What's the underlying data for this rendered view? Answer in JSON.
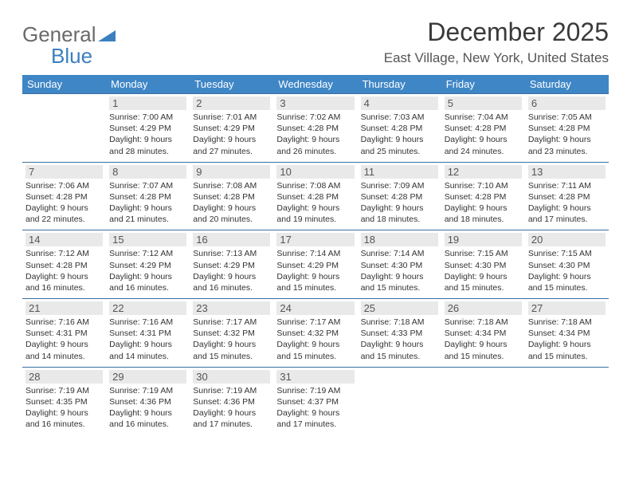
{
  "brand": {
    "part1": "General",
    "part2": "Blue"
  },
  "title": "December 2025",
  "location": "East Village, New York, United States",
  "colors": {
    "header_bg": "#3f86c6",
    "header_text": "#ffffff",
    "row_border": "#3a6fa0",
    "daynum_bg": "#e9e9e9",
    "daynum_text": "#555555",
    "body_text": "#333333",
    "brand_gray": "#6a6a6a",
    "brand_blue": "#3b7fbf"
  },
  "weekdays": [
    "Sunday",
    "Monday",
    "Tuesday",
    "Wednesday",
    "Thursday",
    "Friday",
    "Saturday"
  ],
  "weeks": [
    [
      null,
      {
        "n": "1",
        "sr": "Sunrise: 7:00 AM",
        "ss": "Sunset: 4:29 PM",
        "d1": "Daylight: 9 hours",
        "d2": "and 28 minutes."
      },
      {
        "n": "2",
        "sr": "Sunrise: 7:01 AM",
        "ss": "Sunset: 4:29 PM",
        "d1": "Daylight: 9 hours",
        "d2": "and 27 minutes."
      },
      {
        "n": "3",
        "sr": "Sunrise: 7:02 AM",
        "ss": "Sunset: 4:28 PM",
        "d1": "Daylight: 9 hours",
        "d2": "and 26 minutes."
      },
      {
        "n": "4",
        "sr": "Sunrise: 7:03 AM",
        "ss": "Sunset: 4:28 PM",
        "d1": "Daylight: 9 hours",
        "d2": "and 25 minutes."
      },
      {
        "n": "5",
        "sr": "Sunrise: 7:04 AM",
        "ss": "Sunset: 4:28 PM",
        "d1": "Daylight: 9 hours",
        "d2": "and 24 minutes."
      },
      {
        "n": "6",
        "sr": "Sunrise: 7:05 AM",
        "ss": "Sunset: 4:28 PM",
        "d1": "Daylight: 9 hours",
        "d2": "and 23 minutes."
      }
    ],
    [
      {
        "n": "7",
        "sr": "Sunrise: 7:06 AM",
        "ss": "Sunset: 4:28 PM",
        "d1": "Daylight: 9 hours",
        "d2": "and 22 minutes."
      },
      {
        "n": "8",
        "sr": "Sunrise: 7:07 AM",
        "ss": "Sunset: 4:28 PM",
        "d1": "Daylight: 9 hours",
        "d2": "and 21 minutes."
      },
      {
        "n": "9",
        "sr": "Sunrise: 7:08 AM",
        "ss": "Sunset: 4:28 PM",
        "d1": "Daylight: 9 hours",
        "d2": "and 20 minutes."
      },
      {
        "n": "10",
        "sr": "Sunrise: 7:08 AM",
        "ss": "Sunset: 4:28 PM",
        "d1": "Daylight: 9 hours",
        "d2": "and 19 minutes."
      },
      {
        "n": "11",
        "sr": "Sunrise: 7:09 AM",
        "ss": "Sunset: 4:28 PM",
        "d1": "Daylight: 9 hours",
        "d2": "and 18 minutes."
      },
      {
        "n": "12",
        "sr": "Sunrise: 7:10 AM",
        "ss": "Sunset: 4:28 PM",
        "d1": "Daylight: 9 hours",
        "d2": "and 18 minutes."
      },
      {
        "n": "13",
        "sr": "Sunrise: 7:11 AM",
        "ss": "Sunset: 4:28 PM",
        "d1": "Daylight: 9 hours",
        "d2": "and 17 minutes."
      }
    ],
    [
      {
        "n": "14",
        "sr": "Sunrise: 7:12 AM",
        "ss": "Sunset: 4:28 PM",
        "d1": "Daylight: 9 hours",
        "d2": "and 16 minutes."
      },
      {
        "n": "15",
        "sr": "Sunrise: 7:12 AM",
        "ss": "Sunset: 4:29 PM",
        "d1": "Daylight: 9 hours",
        "d2": "and 16 minutes."
      },
      {
        "n": "16",
        "sr": "Sunrise: 7:13 AM",
        "ss": "Sunset: 4:29 PM",
        "d1": "Daylight: 9 hours",
        "d2": "and 16 minutes."
      },
      {
        "n": "17",
        "sr": "Sunrise: 7:14 AM",
        "ss": "Sunset: 4:29 PM",
        "d1": "Daylight: 9 hours",
        "d2": "and 15 minutes."
      },
      {
        "n": "18",
        "sr": "Sunrise: 7:14 AM",
        "ss": "Sunset: 4:30 PM",
        "d1": "Daylight: 9 hours",
        "d2": "and 15 minutes."
      },
      {
        "n": "19",
        "sr": "Sunrise: 7:15 AM",
        "ss": "Sunset: 4:30 PM",
        "d1": "Daylight: 9 hours",
        "d2": "and 15 minutes."
      },
      {
        "n": "20",
        "sr": "Sunrise: 7:15 AM",
        "ss": "Sunset: 4:30 PM",
        "d1": "Daylight: 9 hours",
        "d2": "and 15 minutes."
      }
    ],
    [
      {
        "n": "21",
        "sr": "Sunrise: 7:16 AM",
        "ss": "Sunset: 4:31 PM",
        "d1": "Daylight: 9 hours",
        "d2": "and 14 minutes."
      },
      {
        "n": "22",
        "sr": "Sunrise: 7:16 AM",
        "ss": "Sunset: 4:31 PM",
        "d1": "Daylight: 9 hours",
        "d2": "and 14 minutes."
      },
      {
        "n": "23",
        "sr": "Sunrise: 7:17 AM",
        "ss": "Sunset: 4:32 PM",
        "d1": "Daylight: 9 hours",
        "d2": "and 15 minutes."
      },
      {
        "n": "24",
        "sr": "Sunrise: 7:17 AM",
        "ss": "Sunset: 4:32 PM",
        "d1": "Daylight: 9 hours",
        "d2": "and 15 minutes."
      },
      {
        "n": "25",
        "sr": "Sunrise: 7:18 AM",
        "ss": "Sunset: 4:33 PM",
        "d1": "Daylight: 9 hours",
        "d2": "and 15 minutes."
      },
      {
        "n": "26",
        "sr": "Sunrise: 7:18 AM",
        "ss": "Sunset: 4:34 PM",
        "d1": "Daylight: 9 hours",
        "d2": "and 15 minutes."
      },
      {
        "n": "27",
        "sr": "Sunrise: 7:18 AM",
        "ss": "Sunset: 4:34 PM",
        "d1": "Daylight: 9 hours",
        "d2": "and 15 minutes."
      }
    ],
    [
      {
        "n": "28",
        "sr": "Sunrise: 7:19 AM",
        "ss": "Sunset: 4:35 PM",
        "d1": "Daylight: 9 hours",
        "d2": "and 16 minutes."
      },
      {
        "n": "29",
        "sr": "Sunrise: 7:19 AM",
        "ss": "Sunset: 4:36 PM",
        "d1": "Daylight: 9 hours",
        "d2": "and 16 minutes."
      },
      {
        "n": "30",
        "sr": "Sunrise: 7:19 AM",
        "ss": "Sunset: 4:36 PM",
        "d1": "Daylight: 9 hours",
        "d2": "and 17 minutes."
      },
      {
        "n": "31",
        "sr": "Sunrise: 7:19 AM",
        "ss": "Sunset: 4:37 PM",
        "d1": "Daylight: 9 hours",
        "d2": "and 17 minutes."
      },
      null,
      null,
      null
    ]
  ]
}
